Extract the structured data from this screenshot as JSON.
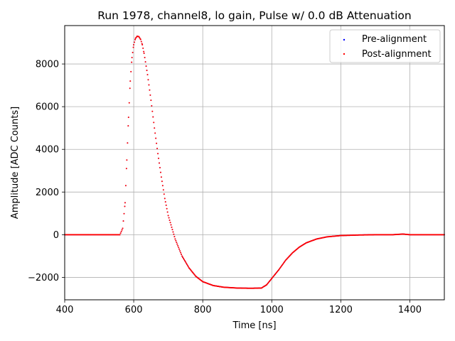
{
  "chart_data": {
    "type": "scatter",
    "title": "Run 1978, channel8, lo gain, Pulse w/ 0.0 dB Attenuation",
    "xlabel": "Time [ns]",
    "ylabel": "Amplitude [ADC Counts]",
    "xlim": [
      400,
      1500
    ],
    "ylim": [
      -3050,
      9800
    ],
    "xticks": [
      400,
      600,
      800,
      1000,
      1200,
      1400
    ],
    "yticks": [
      -2000,
      0,
      2000,
      4000,
      6000,
      8000
    ],
    "ytick_labels": [
      "−2000",
      "0",
      "2000",
      "4000",
      "6000",
      "8000"
    ],
    "grid": true,
    "legend_position": "top-right",
    "series": [
      {
        "name": "Pre-alignment",
        "color": "#0000ff",
        "x": [
          400,
          500,
          560,
          568,
          575,
          580,
          585,
          590,
          595,
          600,
          605,
          610,
          615,
          620,
          625,
          630,
          640,
          650,
          660,
          670,
          680,
          690,
          700,
          720,
          740,
          760,
          780,
          800,
          830,
          860,
          900,
          940,
          970,
          985,
          1000,
          1020,
          1040,
          1060,
          1080,
          1100,
          1130,
          1160,
          1200,
          1250,
          1300,
          1350,
          1380,
          1400,
          1450,
          1500
        ],
        "y": [
          0,
          0,
          0,
          300,
          1500,
          3500,
          5500,
          7200,
          8300,
          8900,
          9200,
          9300,
          9280,
          9150,
          8900,
          8500,
          7500,
          6300,
          5000,
          3800,
          2700,
          1700,
          900,
          -200,
          -1000,
          -1550,
          -1950,
          -2200,
          -2380,
          -2460,
          -2500,
          -2510,
          -2500,
          -2350,
          -2050,
          -1650,
          -1200,
          -850,
          -580,
          -380,
          -200,
          -100,
          -40,
          -15,
          0,
          0,
          30,
          0,
          0,
          0
        ]
      },
      {
        "name": "Post-alignment",
        "color": "#ff0000",
        "x": [
          400,
          500,
          560,
          568,
          575,
          580,
          585,
          590,
          595,
          600,
          605,
          610,
          615,
          620,
          625,
          630,
          640,
          650,
          660,
          670,
          680,
          690,
          700,
          720,
          740,
          760,
          780,
          800,
          830,
          860,
          900,
          940,
          970,
          985,
          1000,
          1020,
          1040,
          1060,
          1080,
          1100,
          1130,
          1160,
          1200,
          1250,
          1300,
          1350,
          1380,
          1400,
          1450,
          1500
        ],
        "y": [
          0,
          0,
          0,
          300,
          1500,
          3500,
          5500,
          7200,
          8300,
          8900,
          9200,
          9300,
          9280,
          9150,
          8900,
          8500,
          7500,
          6300,
          5000,
          3800,
          2700,
          1700,
          900,
          -200,
          -1000,
          -1550,
          -1950,
          -2200,
          -2380,
          -2460,
          -2500,
          -2510,
          -2500,
          -2350,
          -2050,
          -1650,
          -1200,
          -850,
          -580,
          -380,
          -200,
          -100,
          -40,
          -15,
          0,
          0,
          30,
          0,
          0,
          0
        ]
      }
    ]
  }
}
